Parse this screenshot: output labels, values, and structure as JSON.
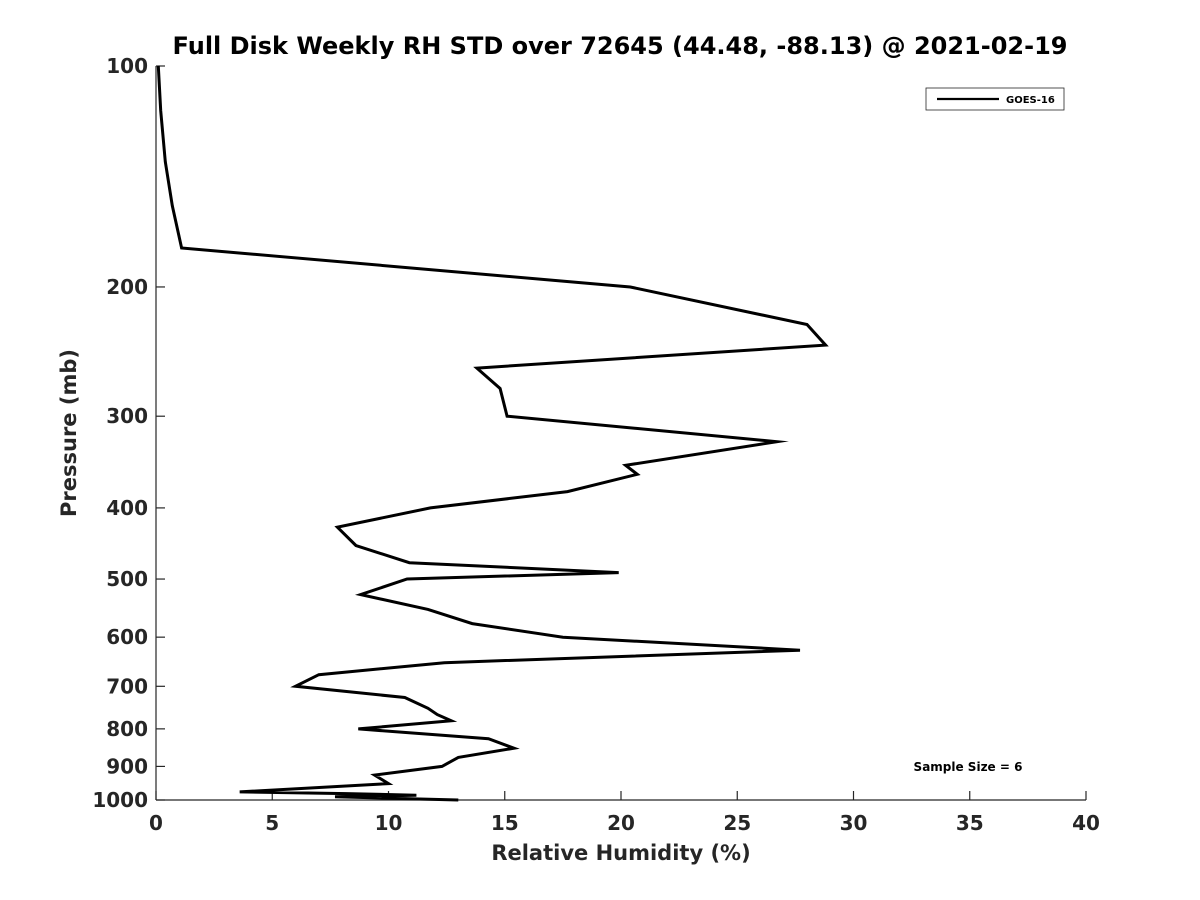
{
  "chart_data": {
    "type": "line",
    "title": "Full Disk Weekly RH STD over 72645 (44.48, -88.13) @ 2021-02-19",
    "xlabel": "Relative Humidity (%)",
    "ylabel": "Pressure (mb)",
    "xlim": [
      0,
      40
    ],
    "ylim": [
      1000,
      100
    ],
    "yscale": "log",
    "y_inverted": true,
    "grid": false,
    "legend_position": "top-right",
    "x_ticks": [
      0,
      5,
      10,
      15,
      20,
      25,
      30,
      35,
      40
    ],
    "y_ticks": [
      100,
      200,
      300,
      400,
      500,
      600,
      700,
      800,
      900,
      1000
    ],
    "series": [
      {
        "name": "GOES-16",
        "color": "#000000",
        "x": [
          0.1,
          0.2,
          0.4,
          0.7,
          1.1,
          20.4,
          28.0,
          28.8,
          13.8,
          14.8,
          15.1,
          26.7,
          20.2,
          20.7,
          17.7,
          11.8,
          7.8,
          8.6,
          10.9,
          19.9,
          10.8,
          8.8,
          11.7,
          13.6,
          17.5,
          27.7,
          12.4,
          7.0,
          6.0,
          10.7,
          11.7,
          12.1,
          12.7,
          8.7,
          14.3,
          15.4,
          13.0,
          12.3,
          9.4,
          10.0,
          3.6,
          8.2,
          11.2,
          7.7,
          13.0
        ],
        "y": [
          100,
          115,
          135,
          155,
          177,
          200,
          225,
          240,
          258,
          275,
          300,
          325,
          350,
          360,
          380,
          400,
          425,
          450,
          475,
          490,
          500,
          525,
          550,
          575,
          600,
          625,
          650,
          675,
          700,
          725,
          750,
          765,
          780,
          800,
          825,
          850,
          875,
          900,
          925,
          950,
          975,
          980,
          985,
          990,
          1000
        ]
      }
    ],
    "annotations": [
      "Sample Size = 6"
    ]
  }
}
